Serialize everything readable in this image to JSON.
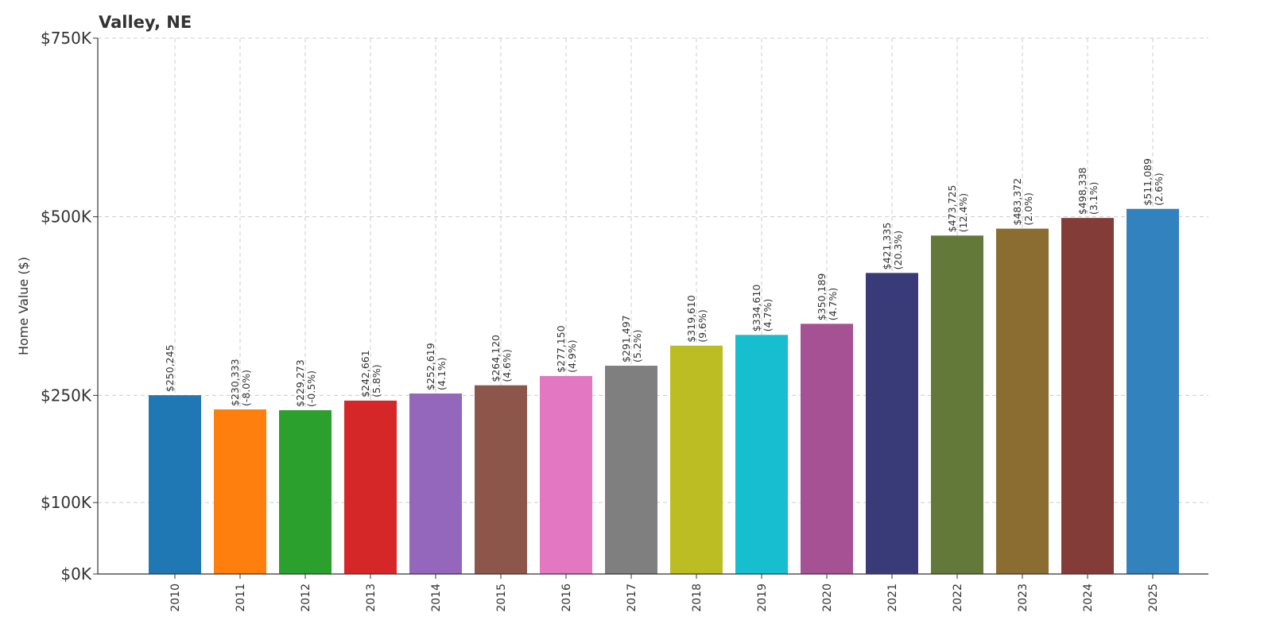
{
  "chart_data": {
    "type": "bar",
    "title": "Valley, NE",
    "ylabel": "Home Value ($)",
    "xlabel": "",
    "ylim": [
      0,
      750000
    ],
    "grid": true,
    "y_ticks": [
      {
        "value": 0,
        "label": "$0K"
      },
      {
        "value": 100000,
        "label": "$100K"
      },
      {
        "value": 250000,
        "label": "$250K"
      },
      {
        "value": 500000,
        "label": "$500K"
      },
      {
        "value": 750000,
        "label": "$750K"
      }
    ],
    "categories": [
      "2010",
      "2011",
      "2012",
      "2013",
      "2014",
      "2015",
      "2016",
      "2017",
      "2018",
      "2019",
      "2020",
      "2021",
      "2022",
      "2023",
      "2024",
      "2025"
    ],
    "values": [
      250245,
      230333,
      229273,
      242661,
      252619,
      264120,
      277150,
      291497,
      319610,
      334610,
      350189,
      421335,
      473725,
      483372,
      498338,
      511089
    ],
    "value_labels": [
      "$250,245",
      "$230,333",
      "$229,273",
      "$242,661",
      "$252,619",
      "$264,120",
      "$277,150",
      "$291,497",
      "$319,610",
      "$334,610",
      "$350,189",
      "$421,335",
      "$473,725",
      "$483,372",
      "$498,338",
      "$511,089"
    ],
    "change_labels": [
      "",
      "(-8.0%)",
      "(-0.5%)",
      "(5.8%)",
      "(4.1%)",
      "(4.6%)",
      "(4.9%)",
      "(5.2%)",
      "(9.6%)",
      "(4.7%)",
      "(4.7%)",
      "(20.3%)",
      "(12.4%)",
      "(2.0%)",
      "(3.1%)",
      "(2.6%)"
    ],
    "colors": [
      "#1f77b4",
      "#ff7f0e",
      "#2ca02c",
      "#d62728",
      "#9467bd",
      "#8c564b",
      "#e377c2",
      "#7f7f7f",
      "#bcbd22",
      "#17becf",
      "#a55194",
      "#393b79",
      "#637939",
      "#8c6d31",
      "#843c39",
      "#3182bd"
    ]
  }
}
